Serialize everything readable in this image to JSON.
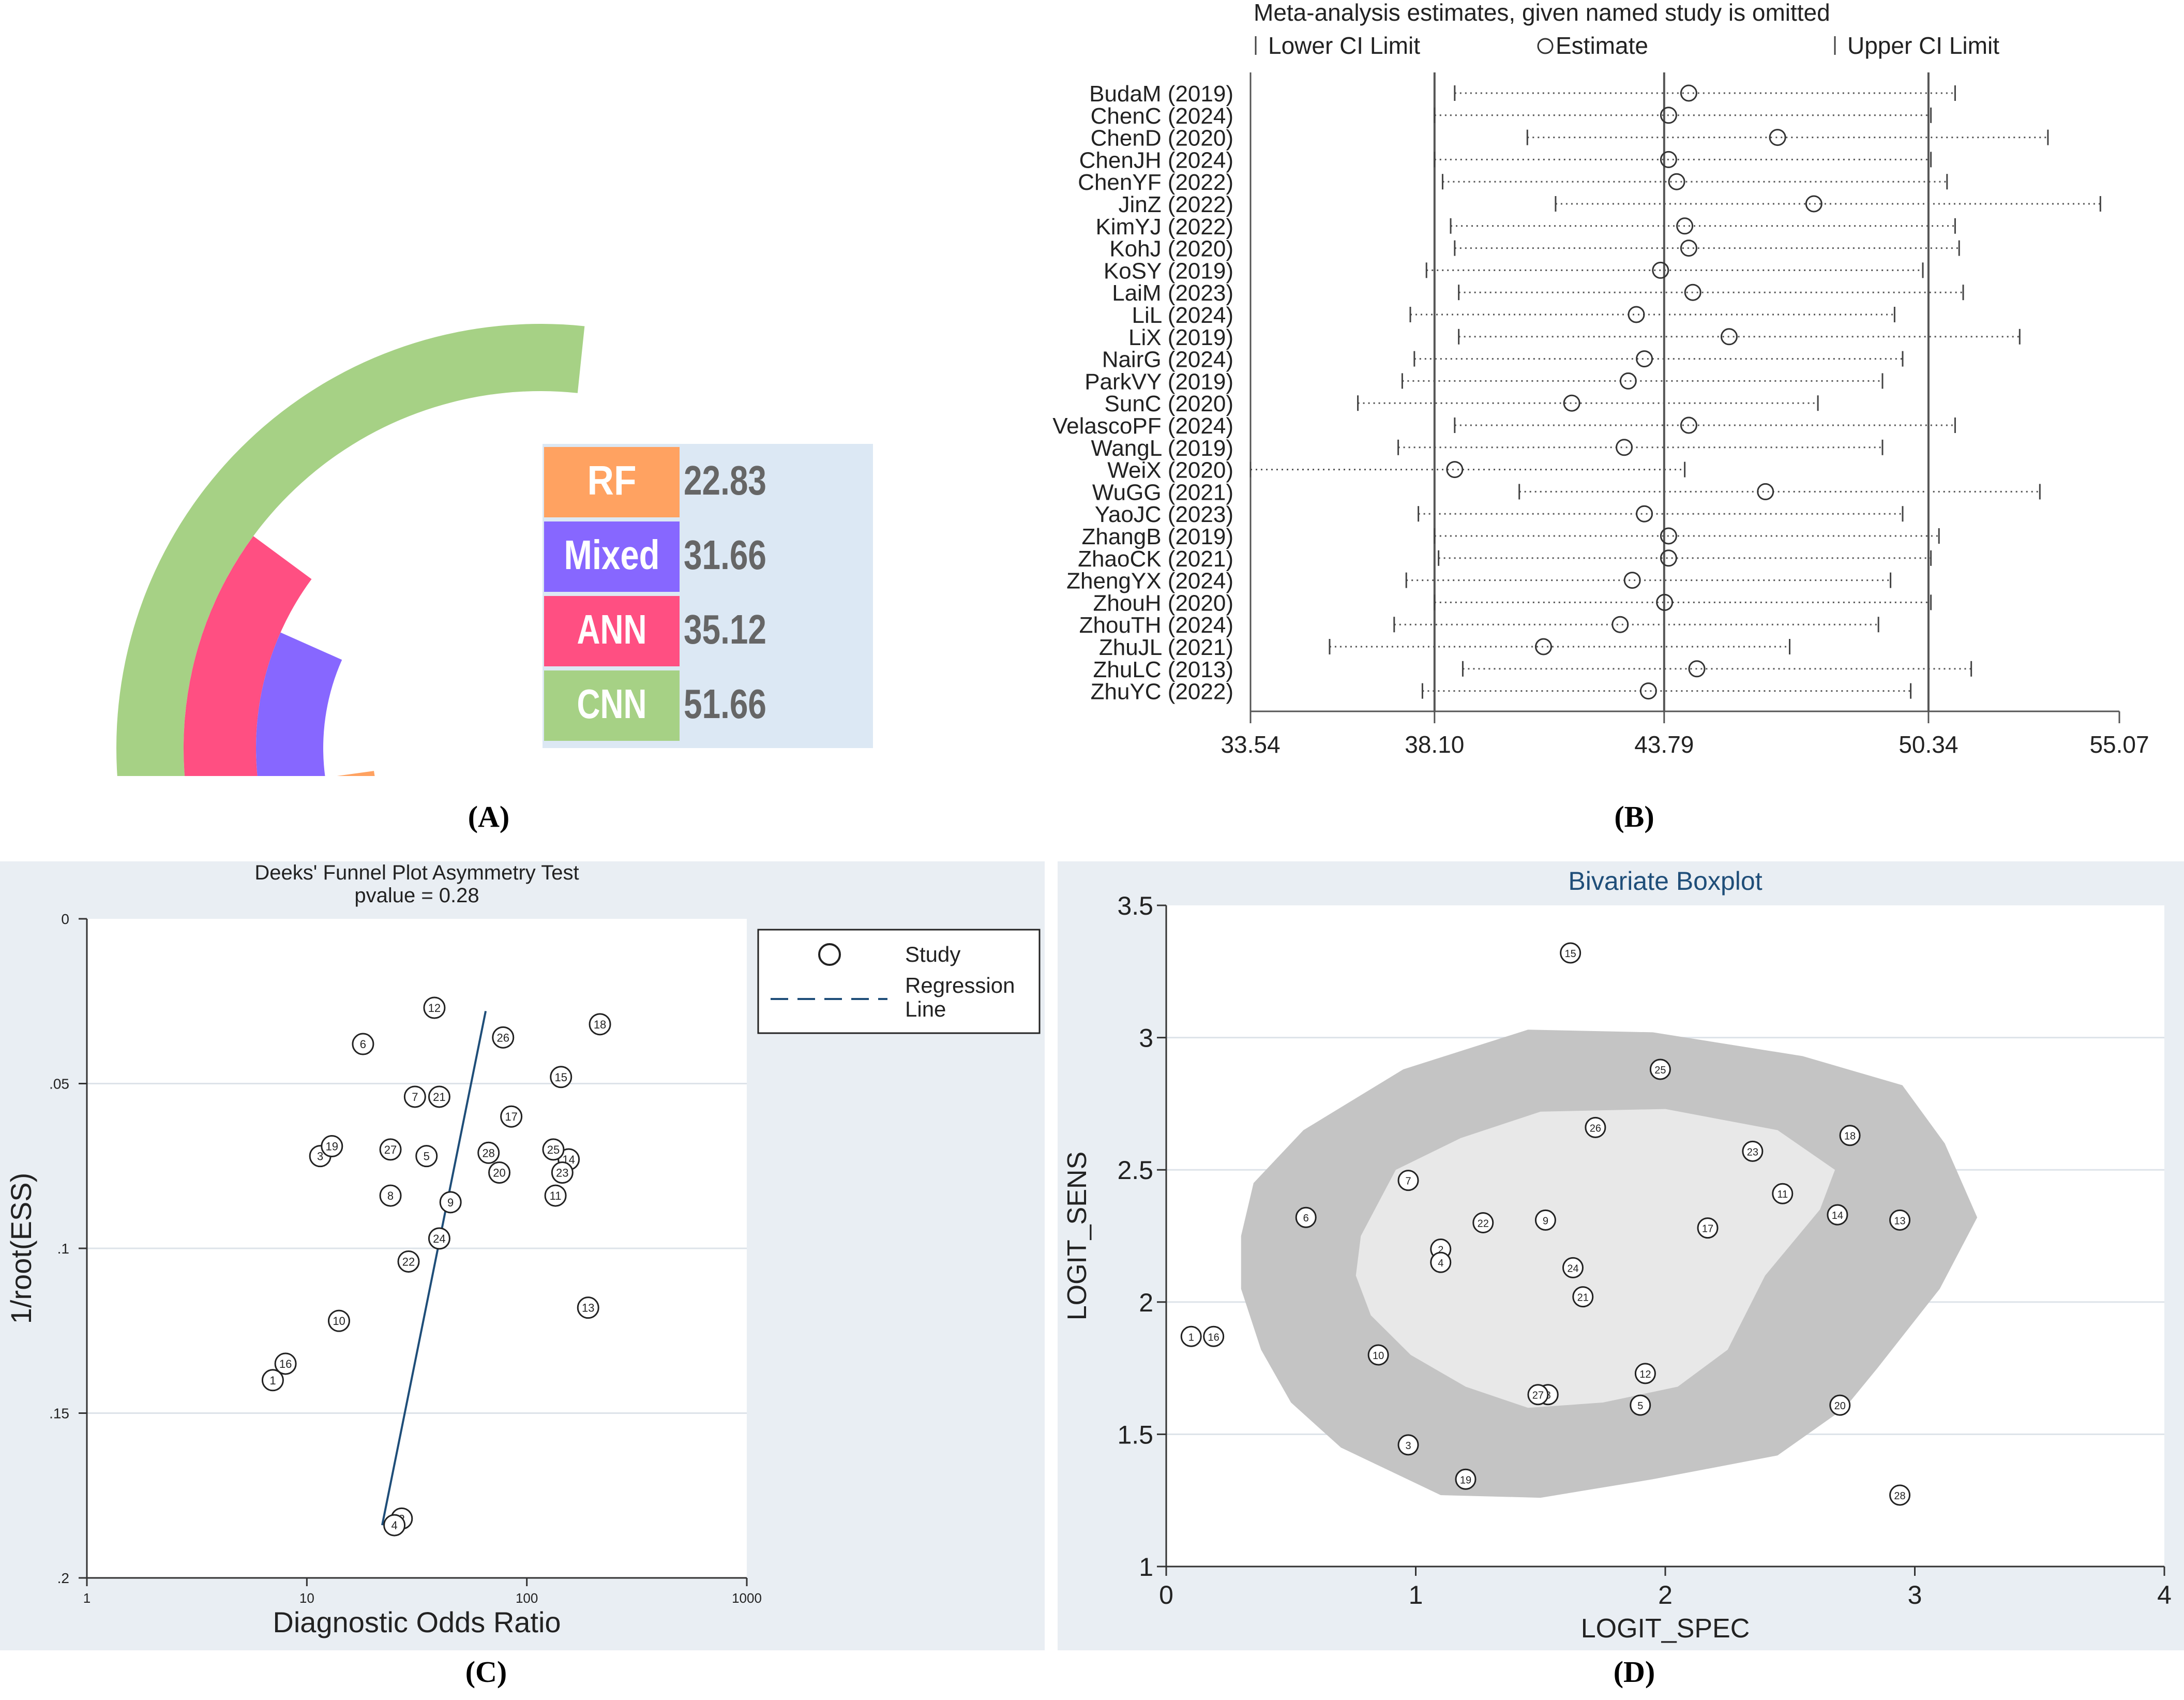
{
  "panel_labels": {
    "a": "(A)",
    "b": "(B)",
    "c": "(C)",
    "d": "(D)"
  },
  "chart_data": [
    {
      "id": "A",
      "type": "bar",
      "subtype": "radial-bar",
      "categories": [
        "RF",
        "Mixed",
        "ANN",
        "CNN"
      ],
      "values": [
        22.83,
        31.66,
        35.12,
        51.66
      ],
      "value_labels": [
        "22.83",
        "31.66",
        "35.12",
        "51.66"
      ],
      "max_value": 100,
      "colors": [
        "#FFA261",
        "#8767FF",
        "#FF4F82",
        "#A6D185"
      ],
      "table_bg": "#DCE8F4"
    },
    {
      "id": "B",
      "type": "scatter",
      "subtype": "sensitivity-analysis",
      "title": "Meta-analysis estimates, given named study is omitted",
      "legend": [
        "Lower CI Limit",
        "Estimate",
        "Upper CI Limit"
      ],
      "xticks": [
        33.54,
        38.1,
        43.79,
        50.34,
        55.07
      ],
      "xtick_labels": [
        "33.54",
        "38.10",
        "43.79",
        "50.34",
        "55.07"
      ],
      "xlim": [
        33.54,
        55.07
      ],
      "ref_lines": [
        38.1,
        43.79,
        50.34
      ],
      "studies": [
        {
          "name": "BudaM (2019)",
          "lo": 38.6,
          "est": 44.4,
          "hi": 51.0
        },
        {
          "name": "ChenC (2024)",
          "lo": 38.1,
          "est": 43.9,
          "hi": 50.4
        },
        {
          "name": "ChenD (2020)",
          "lo": 40.4,
          "est": 46.6,
          "hi": 53.3
        },
        {
          "name": "ChenJH (2024)",
          "lo": 38.1,
          "est": 43.9,
          "hi": 50.4
        },
        {
          "name": "ChenYF (2022)",
          "lo": 38.3,
          "est": 44.1,
          "hi": 50.8
        },
        {
          "name": "JinZ (2022)",
          "lo": 41.1,
          "est": 47.5,
          "hi": 54.6
        },
        {
          "name": "KimYJ (2022)",
          "lo": 38.5,
          "est": 44.3,
          "hi": 51.0
        },
        {
          "name": "KohJ (2020)",
          "lo": 38.6,
          "est": 44.4,
          "hi": 51.1
        },
        {
          "name": "KoSY (2019)",
          "lo": 37.9,
          "est": 43.7,
          "hi": 50.2
        },
        {
          "name": "LaiM (2023)",
          "lo": 38.7,
          "est": 44.5,
          "hi": 51.2
        },
        {
          "name": "LiL (2024)",
          "lo": 37.5,
          "est": 43.1,
          "hi": 49.5
        },
        {
          "name": "LiX (2019)",
          "lo": 38.7,
          "est": 45.4,
          "hi": 52.6
        },
        {
          "name": "NairG (2024)",
          "lo": 37.6,
          "est": 43.3,
          "hi": 49.7
        },
        {
          "name": "ParkVY (2019)",
          "lo": 37.3,
          "est": 42.9,
          "hi": 49.2
        },
        {
          "name": "SunC (2020)",
          "lo": 36.2,
          "est": 41.5,
          "hi": 47.6
        },
        {
          "name": "VelascoPF (2024)",
          "lo": 38.6,
          "est": 44.4,
          "hi": 51.0
        },
        {
          "name": "WangL (2019)",
          "lo": 37.2,
          "est": 42.8,
          "hi": 49.2
        },
        {
          "name": "WeiX (2020)",
          "lo": 33.54,
          "est": 38.6,
          "hi": 44.3
        },
        {
          "name": "WuGG (2021)",
          "lo": 40.2,
          "est": 46.3,
          "hi": 53.1
        },
        {
          "name": "YaoJC (2023)",
          "lo": 37.7,
          "est": 43.3,
          "hi": 49.7
        },
        {
          "name": "ZhangB (2019)",
          "lo": 38.1,
          "est": 43.9,
          "hi": 50.6
        },
        {
          "name": "ZhaoCK (2021)",
          "lo": 38.2,
          "est": 43.9,
          "hi": 50.4
        },
        {
          "name": "ZhengYX (2024)",
          "lo": 37.4,
          "est": 43.0,
          "hi": 49.4
        },
        {
          "name": "ZhouH (2020)",
          "lo": 38.1,
          "est": 43.8,
          "hi": 50.4
        },
        {
          "name": "ZhouTH (2024)",
          "lo": 37.1,
          "est": 42.7,
          "hi": 49.1
        },
        {
          "name": "ZhuJL (2021)",
          "lo": 35.5,
          "est": 40.8,
          "hi": 46.9
        },
        {
          "name": "ZhuLC (2013)",
          "lo": 38.8,
          "est": 44.6,
          "hi": 51.4
        },
        {
          "name": "ZhuYC (2022)",
          "lo": 37.8,
          "est": 43.4,
          "hi": 49.9
        }
      ]
    },
    {
      "id": "C",
      "type": "scatter",
      "subtype": "deeks-funnel",
      "title": "Deeks' Funnel Plot Asymmetry Test",
      "subtitle": "pvalue =   0.28",
      "xlabel": "Diagnostic Odds Ratio",
      "ylabel": "1/root(ESS)",
      "xscale": "log",
      "xlim": [
        1,
        1000
      ],
      "ylim": [
        0,
        0.2
      ],
      "y_inverted": true,
      "xticks": [
        1,
        10,
        100,
        1000
      ],
      "xtick_labels": [
        "1",
        "10",
        "100",
        "1000"
      ],
      "yticks": [
        0,
        0.05,
        0.1,
        0.15,
        0.2
      ],
      "ytick_labels": [
        "0",
        ".05",
        ".1",
        ".15",
        ".2"
      ],
      "legend": [
        "Study",
        "Regression",
        "Line"
      ],
      "regression_line": [
        [
          22,
          0.184
        ],
        [
          65,
          0.028
        ]
      ],
      "points": [
        {
          "id": "1",
          "x": 7,
          "y": 0.14
        },
        {
          "id": "2",
          "x": 27,
          "y": 0.182
        },
        {
          "id": "3",
          "x": 11.5,
          "y": 0.072
        },
        {
          "id": "4",
          "x": 25,
          "y": 0.184
        },
        {
          "id": "5",
          "x": 35,
          "y": 0.072
        },
        {
          "id": "6",
          "x": 18,
          "y": 0.038
        },
        {
          "id": "7",
          "x": 31,
          "y": 0.054
        },
        {
          "id": "8",
          "x": 24,
          "y": 0.084
        },
        {
          "id": "9",
          "x": 45,
          "y": 0.086
        },
        {
          "id": "10",
          "x": 14,
          "y": 0.122
        },
        {
          "id": "11",
          "x": 135,
          "y": 0.084
        },
        {
          "id": "12",
          "x": 38,
          "y": 0.027
        },
        {
          "id": "13",
          "x": 190,
          "y": 0.118
        },
        {
          "id": "14",
          "x": 155,
          "y": 0.073
        },
        {
          "id": "15",
          "x": 143,
          "y": 0.048
        },
        {
          "id": "16",
          "x": 8,
          "y": 0.135
        },
        {
          "id": "17",
          "x": 85,
          "y": 0.06
        },
        {
          "id": "18",
          "x": 215,
          "y": 0.032
        },
        {
          "id": "19",
          "x": 13,
          "y": 0.069
        },
        {
          "id": "20",
          "x": 75,
          "y": 0.077
        },
        {
          "id": "21",
          "x": 40,
          "y": 0.054
        },
        {
          "id": "22",
          "x": 29,
          "y": 0.104
        },
        {
          "id": "23",
          "x": 145,
          "y": 0.077
        },
        {
          "id": "24",
          "x": 40,
          "y": 0.097
        },
        {
          "id": "25",
          "x": 132,
          "y": 0.07
        },
        {
          "id": "26",
          "x": 78,
          "y": 0.036
        },
        {
          "id": "27",
          "x": 24,
          "y": 0.07
        },
        {
          "id": "28",
          "x": 67,
          "y": 0.071
        }
      ]
    },
    {
      "id": "D",
      "type": "scatter",
      "subtype": "bivariate-boxplot",
      "title": "Bivariate Boxplot",
      "xlabel": "LOGIT_SPEC",
      "ylabel": "LOGIT_SENS",
      "xlim": [
        0,
        4
      ],
      "ylim": [
        1,
        3.5
      ],
      "xticks": [
        0,
        1,
        2,
        3,
        4
      ],
      "xtick_labels": [
        "0",
        "1",
        "2",
        "3",
        "4"
      ],
      "yticks": [
        1,
        1.5,
        2,
        2.5,
        3,
        3.5
      ],
      "ytick_labels": [
        "1",
        "1.5",
        "2",
        "2.5",
        "3",
        "3.5"
      ],
      "outer_region": [
        [
          0.3,
          2.25
        ],
        [
          0.35,
          2.45
        ],
        [
          0.55,
          2.65
        ],
        [
          0.95,
          2.88
        ],
        [
          1.45,
          3.03
        ],
        [
          1.95,
          3.02
        ],
        [
          2.55,
          2.93
        ],
        [
          2.95,
          2.82
        ],
        [
          3.12,
          2.6
        ],
        [
          3.25,
          2.32
        ],
        [
          3.1,
          2.05
        ],
        [
          2.85,
          1.75
        ],
        [
          2.72,
          1.6
        ],
        [
          2.45,
          1.42
        ],
        [
          1.95,
          1.33
        ],
        [
          1.5,
          1.26
        ],
        [
          1.1,
          1.27
        ],
        [
          0.7,
          1.45
        ],
        [
          0.5,
          1.62
        ],
        [
          0.38,
          1.82
        ],
        [
          0.3,
          2.05
        ]
      ],
      "inner_region": [
        [
          0.78,
          2.25
        ],
        [
          0.92,
          2.5
        ],
        [
          1.18,
          2.62
        ],
        [
          1.5,
          2.72
        ],
        [
          2.0,
          2.73
        ],
        [
          2.45,
          2.65
        ],
        [
          2.68,
          2.5
        ],
        [
          2.62,
          2.35
        ],
        [
          2.4,
          2.1
        ],
        [
          2.25,
          1.82
        ],
        [
          2.05,
          1.68
        ],
        [
          1.75,
          1.62
        ],
        [
          1.45,
          1.6
        ],
        [
          1.2,
          1.68
        ],
        [
          0.98,
          1.8
        ],
        [
          0.82,
          1.95
        ],
        [
          0.76,
          2.1
        ]
      ],
      "points": [
        {
          "id": "1",
          "x": 0.1,
          "y": 1.87
        },
        {
          "id": "2",
          "x": 1.1,
          "y": 2.2
        },
        {
          "id": "3",
          "x": 0.97,
          "y": 1.46
        },
        {
          "id": "4",
          "x": 1.1,
          "y": 2.15
        },
        {
          "id": "5",
          "x": 1.9,
          "y": 1.61
        },
        {
          "id": "6",
          "x": 0.56,
          "y": 2.32
        },
        {
          "id": "7",
          "x": 0.97,
          "y": 2.46
        },
        {
          "id": "8",
          "x": 1.53,
          "y": 1.65
        },
        {
          "id": "9",
          "x": 1.52,
          "y": 2.31
        },
        {
          "id": "10",
          "x": 0.85,
          "y": 1.8
        },
        {
          "id": "11",
          "x": 2.47,
          "y": 2.41
        },
        {
          "id": "12",
          "x": 1.92,
          "y": 1.73
        },
        {
          "id": "13",
          "x": 2.94,
          "y": 2.31
        },
        {
          "id": "14",
          "x": 2.69,
          "y": 2.33
        },
        {
          "id": "15",
          "x": 1.62,
          "y": 3.32
        },
        {
          "id": "16",
          "x": 0.19,
          "y": 1.87
        },
        {
          "id": "17",
          "x": 2.17,
          "y": 2.28
        },
        {
          "id": "18",
          "x": 2.74,
          "y": 2.63
        },
        {
          "id": "19",
          "x": 1.2,
          "y": 1.33
        },
        {
          "id": "20",
          "x": 2.7,
          "y": 1.61
        },
        {
          "id": "21",
          "x": 1.67,
          "y": 2.02
        },
        {
          "id": "22",
          "x": 1.27,
          "y": 2.3
        },
        {
          "id": "23",
          "x": 2.35,
          "y": 2.57
        },
        {
          "id": "24",
          "x": 1.63,
          "y": 2.13
        },
        {
          "id": "25",
          "x": 1.98,
          "y": 2.88
        },
        {
          "id": "26",
          "x": 1.72,
          "y": 2.66
        },
        {
          "id": "27",
          "x": 1.49,
          "y": 1.65
        },
        {
          "id": "28",
          "x": 2.94,
          "y": 1.27
        }
      ]
    }
  ]
}
